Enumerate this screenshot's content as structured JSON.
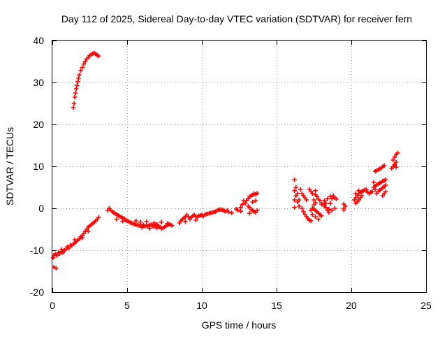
{
  "chart_data": {
    "type": "scatter",
    "title": "Day 112 of 2025, Sidereal Day-to-day VTEC variation (SDTVAR) for receiver fern",
    "xlabel": "GPS time / hours",
    "ylabel": "SDTVAR / TECUs",
    "xlim": [
      0,
      25
    ],
    "ylim": [
      -20,
      40
    ],
    "xticks": [
      "0",
      "5",
      "10",
      "15",
      "20",
      "25"
    ],
    "yticks": [
      "-20",
      "-10",
      "0",
      "10",
      "20",
      "30",
      "40"
    ],
    "grid": true,
    "marker": "plus",
    "color": "#ff0000",
    "series": [
      {
        "name": "sdtvar",
        "points": [
          [
            0.1,
            -14.0
          ],
          [
            0.25,
            -14.3
          ],
          [
            0.05,
            -11.8
          ],
          [
            0.1,
            -11.2
          ],
          [
            0.2,
            -10.9
          ],
          [
            0.3,
            -11.3
          ],
          [
            0.4,
            -10.6
          ],
          [
            0.5,
            -10.8
          ],
          [
            0.6,
            -10.3
          ],
          [
            0.7,
            -10.6
          ],
          [
            0.8,
            -10.0
          ],
          [
            0.9,
            -9.8
          ],
          [
            1.0,
            -9.2
          ],
          [
            1.1,
            -9.5
          ],
          [
            1.2,
            -8.8
          ],
          [
            1.3,
            -8.9
          ],
          [
            1.4,
            -8.5
          ],
          [
            1.5,
            -8.3
          ],
          [
            1.6,
            -7.9
          ],
          [
            1.7,
            -7.6
          ],
          [
            1.8,
            -7.3
          ],
          [
            1.9,
            -6.8
          ],
          [
            2.0,
            -6.4
          ],
          [
            2.1,
            -6.0
          ],
          [
            2.2,
            -5.5
          ],
          [
            2.3,
            -5.0
          ],
          [
            2.4,
            -4.5
          ],
          [
            2.5,
            -4.2
          ],
          [
            2.6,
            -3.9
          ],
          [
            2.7,
            -3.6
          ],
          [
            2.8,
            -3.3
          ],
          [
            2.9,
            -3.0
          ],
          [
            3.0,
            -2.6
          ],
          [
            3.1,
            -2.2
          ],
          [
            0.6,
            -9.8
          ],
          [
            1.5,
            -7.5
          ],
          [
            2.0,
            -7.0
          ],
          [
            2.4,
            -5.5
          ],
          [
            1.4,
            24.0
          ],
          [
            1.45,
            25.0
          ],
          [
            1.5,
            26.5
          ],
          [
            1.55,
            27.5
          ],
          [
            1.6,
            28.5
          ],
          [
            1.65,
            29.3
          ],
          [
            1.7,
            30.2
          ],
          [
            1.75,
            31.0
          ],
          [
            1.8,
            31.8
          ],
          [
            1.9,
            32.8
          ],
          [
            2.0,
            33.6
          ],
          [
            2.1,
            34.4
          ],
          [
            2.2,
            35.0
          ],
          [
            2.3,
            35.6
          ],
          [
            2.4,
            36.0
          ],
          [
            2.5,
            36.4
          ],
          [
            2.6,
            36.7
          ],
          [
            2.7,
            36.9
          ],
          [
            2.8,
            37.0
          ],
          [
            2.9,
            36.8
          ],
          [
            3.0,
            36.5
          ],
          [
            3.1,
            36.3
          ],
          [
            3.7,
            -0.5
          ],
          [
            3.8,
            0.0
          ],
          [
            3.9,
            -0.4
          ],
          [
            4.0,
            -0.8
          ],
          [
            4.1,
            -1.0
          ],
          [
            4.2,
            -1.3
          ],
          [
            4.3,
            -1.4
          ],
          [
            4.4,
            -1.7
          ],
          [
            4.5,
            -1.9
          ],
          [
            4.6,
            -2.1
          ],
          [
            4.7,
            -2.3
          ],
          [
            4.8,
            -2.4
          ],
          [
            4.9,
            -2.8
          ],
          [
            5.0,
            -3.0
          ],
          [
            5.1,
            -3.1
          ],
          [
            5.2,
            -3.4
          ],
          [
            4.3,
            -2.6
          ],
          [
            4.7,
            -3.1
          ],
          [
            5.3,
            -3.5
          ],
          [
            5.4,
            -3.7
          ],
          [
            5.5,
            -3.8
          ],
          [
            5.6,
            -3.9
          ],
          [
            5.7,
            -4.0
          ],
          [
            5.8,
            -4.1
          ],
          [
            5.9,
            -4.0
          ],
          [
            6.0,
            -4.2
          ],
          [
            6.1,
            -4.0
          ],
          [
            6.2,
            -4.3
          ],
          [
            6.3,
            -4.1
          ],
          [
            6.4,
            -4.2
          ],
          [
            6.5,
            -4.0
          ],
          [
            6.6,
            -3.9
          ],
          [
            6.7,
            -4.2
          ],
          [
            6.8,
            -4.4
          ],
          [
            6.9,
            -4.0
          ],
          [
            7.0,
            -3.8
          ],
          [
            7.1,
            -4.2
          ],
          [
            7.2,
            -4.5
          ],
          [
            7.3,
            -4.8
          ],
          [
            7.4,
            -4.7
          ],
          [
            7.5,
            -4.5
          ],
          [
            7.6,
            -4.2
          ],
          [
            7.7,
            -4.0
          ],
          [
            7.8,
            -3.8
          ],
          [
            7.9,
            -3.9
          ],
          [
            8.0,
            -4.1
          ],
          [
            5.6,
            -3.0
          ],
          [
            5.9,
            -3.3
          ],
          [
            6.3,
            -3.2
          ],
          [
            6.8,
            -3.5
          ],
          [
            7.3,
            -3.3
          ],
          [
            7.7,
            -3.6
          ],
          [
            6.0,
            -4.6
          ],
          [
            6.5,
            -4.8
          ],
          [
            7.0,
            -4.7
          ],
          [
            8.5,
            -3.5
          ],
          [
            8.6,
            -3.0
          ],
          [
            8.7,
            -2.6
          ],
          [
            8.8,
            -2.3
          ],
          [
            8.9,
            -2.0
          ],
          [
            9.0,
            -1.6
          ],
          [
            9.1,
            -2.0
          ],
          [
            9.2,
            -2.6
          ],
          [
            9.3,
            -2.2
          ],
          [
            9.4,
            -1.8
          ],
          [
            9.5,
            -1.6
          ],
          [
            9.6,
            -1.9
          ],
          [
            9.7,
            -2.1
          ],
          [
            9.8,
            -1.8
          ],
          [
            9.9,
            -1.7
          ],
          [
            10.0,
            -1.6
          ],
          [
            10.1,
            -1.9
          ],
          [
            10.2,
            -1.5
          ],
          [
            10.3,
            -1.4
          ],
          [
            10.4,
            -1.3
          ],
          [
            10.5,
            -1.2
          ],
          [
            10.6,
            -1.1
          ],
          [
            10.7,
            -1.0
          ],
          [
            10.8,
            -0.9
          ],
          [
            10.9,
            -0.8
          ],
          [
            11.0,
            -0.6
          ],
          [
            11.1,
            -0.4
          ],
          [
            11.2,
            -0.3
          ],
          [
            11.3,
            -0.3
          ],
          [
            11.4,
            -0.4
          ],
          [
            11.5,
            -0.6
          ],
          [
            11.6,
            -0.8
          ],
          [
            11.7,
            -0.5
          ],
          [
            11.8,
            -0.9
          ],
          [
            12.0,
            -1.1
          ],
          [
            8.9,
            -3.2
          ],
          [
            9.6,
            -2.8
          ],
          [
            12.3,
            -0.2
          ],
          [
            12.4,
            -0.4
          ],
          [
            12.6,
            0.2
          ],
          [
            12.7,
            0.9
          ],
          [
            12.8,
            1.8
          ],
          [
            12.9,
            1.2
          ],
          [
            12.6,
            -0.7
          ],
          [
            13.0,
            1.8
          ],
          [
            13.1,
            2.3
          ],
          [
            13.2,
            2.8
          ],
          [
            13.3,
            3.0
          ],
          [
            13.4,
            3.2
          ],
          [
            13.5,
            3.5
          ],
          [
            13.6,
            3.3
          ],
          [
            13.7,
            3.6
          ],
          [
            13.1,
            0.5
          ],
          [
            13.2,
            0.2
          ],
          [
            13.3,
            -0.3
          ],
          [
            13.4,
            -0.5
          ],
          [
            13.5,
            -0.8
          ],
          [
            13.6,
            -1.0
          ],
          [
            13.7,
            -0.5
          ],
          [
            13.2,
            -1.2
          ],
          [
            13.4,
            1.5
          ],
          [
            13.6,
            1.8
          ],
          [
            16.2,
            6.8
          ],
          [
            16.3,
            5.0
          ],
          [
            16.4,
            3.5
          ],
          [
            16.5,
            2.0
          ],
          [
            16.2,
            4.2
          ],
          [
            16.3,
            3.0
          ],
          [
            16.2,
            2.0
          ],
          [
            16.4,
            1.5
          ],
          [
            16.5,
            0.5
          ],
          [
            16.2,
            0.2
          ],
          [
            16.6,
            4.5
          ],
          [
            16.7,
            3.5
          ],
          [
            16.8,
            3.0
          ],
          [
            16.9,
            2.5
          ],
          [
            17.0,
            2.0
          ],
          [
            16.7,
            0.0
          ],
          [
            16.8,
            -0.8
          ],
          [
            16.9,
            -1.5
          ],
          [
            17.0,
            -2.0
          ],
          [
            17.1,
            -2.5
          ],
          [
            17.2,
            -2.8
          ],
          [
            17.3,
            -3.0
          ],
          [
            17.3,
            -0.5
          ],
          [
            17.4,
            0.0
          ],
          [
            17.5,
            0.8
          ],
          [
            17.6,
            1.3
          ],
          [
            17.5,
            -0.2
          ],
          [
            17.6,
            -0.5
          ],
          [
            17.7,
            -0.8
          ],
          [
            17.8,
            -1.2
          ],
          [
            17.9,
            -1.5
          ],
          [
            18.0,
            -1.8
          ],
          [
            17.4,
            -1.5
          ],
          [
            17.6,
            -2.0
          ],
          [
            17.8,
            -2.6
          ],
          [
            17.5,
            2.0
          ],
          [
            17.6,
            3.2
          ],
          [
            17.7,
            2.8
          ],
          [
            17.8,
            2.2
          ],
          [
            17.9,
            1.8
          ],
          [
            17.2,
            4.5
          ],
          [
            17.3,
            4.0
          ],
          [
            17.4,
            3.5
          ],
          [
            17.6,
            4.2
          ],
          [
            18.0,
            1.0
          ],
          [
            18.1,
            1.0
          ],
          [
            18.2,
            0.5
          ],
          [
            18.3,
            0.2
          ],
          [
            18.4,
            -0.5
          ],
          [
            18.5,
            -0.2
          ],
          [
            18.6,
            1.2
          ],
          [
            18.7,
            2.3
          ],
          [
            18.8,
            3.0
          ],
          [
            18.9,
            2.5
          ],
          [
            19.0,
            2.2
          ],
          [
            18.4,
            2.3
          ],
          [
            18.6,
            2.8
          ],
          [
            18.2,
            1.8
          ],
          [
            18.3,
            1.2
          ],
          [
            18.5,
            -1.0
          ],
          [
            18.7,
            -0.5
          ],
          [
            18.9,
            0.0
          ],
          [
            19.5,
            1.0
          ],
          [
            19.5,
            0.0
          ],
          [
            19.5,
            -0.4
          ],
          [
            19.6,
            0.5
          ],
          [
            20.2,
            2.0
          ],
          [
            20.3,
            2.5
          ],
          [
            20.4,
            3.0
          ],
          [
            20.5,
            3.5
          ],
          [
            20.6,
            3.8
          ],
          [
            20.7,
            4.0
          ],
          [
            20.3,
            1.2
          ],
          [
            20.4,
            1.5
          ],
          [
            20.5,
            2.0
          ],
          [
            20.6,
            2.5
          ],
          [
            20.7,
            3.0
          ],
          [
            20.8,
            4.2
          ],
          [
            20.9,
            4.4
          ],
          [
            21.0,
            4.5
          ],
          [
            20.3,
            3.5
          ],
          [
            20.5,
            4.2
          ],
          [
            21.1,
            3.8
          ],
          [
            21.2,
            3.5
          ],
          [
            21.3,
            3.8
          ],
          [
            21.4,
            4.0
          ],
          [
            21.5,
            5.0
          ],
          [
            21.6,
            5.3
          ],
          [
            21.7,
            5.6
          ],
          [
            21.8,
            5.8
          ],
          [
            21.9,
            6.0
          ],
          [
            22.0,
            6.2
          ],
          [
            22.1,
            6.5
          ],
          [
            22.2,
            6.6
          ],
          [
            22.3,
            6.8
          ],
          [
            21.7,
            3.5
          ],
          [
            21.8,
            4.0
          ],
          [
            21.9,
            4.3
          ],
          [
            22.0,
            4.6
          ],
          [
            22.1,
            4.9
          ],
          [
            22.2,
            5.2
          ],
          [
            22.3,
            5.5
          ],
          [
            21.6,
            4.5
          ],
          [
            21.5,
            6.2
          ],
          [
            21.6,
            8.8
          ],
          [
            21.7,
            9.0
          ],
          [
            21.8,
            9.2
          ],
          [
            21.9,
            9.4
          ],
          [
            22.0,
            9.6
          ],
          [
            22.1,
            9.9
          ],
          [
            22.2,
            10.2
          ],
          [
            22.1,
            3.0
          ],
          [
            22.2,
            3.5
          ],
          [
            22.3,
            4.0
          ],
          [
            22.7,
            9.5
          ],
          [
            22.8,
            10.0
          ],
          [
            22.9,
            10.5
          ],
          [
            23.0,
            11.0
          ],
          [
            22.8,
            11.5
          ],
          [
            22.9,
            12.2
          ],
          [
            23.0,
            12.8
          ],
          [
            23.1,
            13.2
          ],
          [
            22.9,
            10.3
          ],
          [
            23.0,
            9.8
          ]
        ]
      }
    ]
  }
}
